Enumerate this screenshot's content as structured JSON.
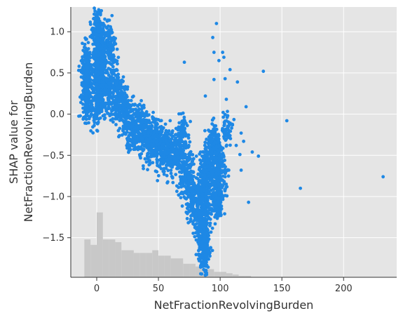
{
  "chart_data": {
    "type": "scatter",
    "xlabel": "NetFractionRevolvingBurden",
    "ylabel_lines": [
      "SHAP value for",
      "NetFractionRevolvingBurden"
    ],
    "xlim": [
      -21,
      243
    ],
    "ylim": [
      -1.98,
      1.3
    ],
    "xticks": [
      0,
      50,
      100,
      150,
      200
    ],
    "yticks": [
      1.0,
      0.5,
      0.0,
      -0.5,
      -1.0,
      -1.5
    ],
    "ytick_labels": [
      "1.0",
      "0.5",
      "0.0",
      "−0.5",
      "−1.0",
      "−1.5"
    ],
    "grid": true,
    "background": "#e5e5e5",
    "point_color": "#1e88e5",
    "hist_color": "#c8c8c8",
    "cloud": [
      [
        -8,
        0.42
      ],
      [
        -8,
        0.1
      ],
      [
        -8,
        0.3
      ],
      [
        -8,
        0.55
      ],
      [
        -8,
        0.65
      ],
      [
        0,
        0.35
      ],
      [
        0,
        0.0
      ],
      [
        1,
        0.7
      ],
      [
        1,
        1.1
      ],
      [
        1,
        1.0
      ],
      [
        2,
        0.5
      ],
      [
        3,
        0.8
      ],
      [
        4,
        0.3
      ],
      [
        5,
        0.75
      ],
      [
        5,
        0.2
      ],
      [
        8,
        0.5
      ],
      [
        10,
        0.9
      ],
      [
        10,
        0.2
      ],
      [
        12,
        0.8
      ],
      [
        13,
        0.45
      ],
      [
        15,
        0.1
      ],
      [
        18,
        0.3
      ],
      [
        20,
        0.2
      ],
      [
        22,
        -0.05
      ],
      [
        25,
        0.05
      ],
      [
        28,
        -0.2
      ],
      [
        30,
        -0.05
      ],
      [
        32,
        -0.3
      ],
      [
        35,
        -0.15
      ],
      [
        38,
        -0.1
      ],
      [
        40,
        -0.25
      ],
      [
        42,
        -0.4
      ],
      [
        45,
        -0.3
      ],
      [
        48,
        -0.2
      ],
      [
        50,
        -0.35
      ],
      [
        52,
        -0.5
      ],
      [
        55,
        -0.4
      ],
      [
        58,
        -0.35
      ],
      [
        60,
        -0.55
      ],
      [
        62,
        -0.45
      ],
      [
        65,
        -0.5
      ],
      [
        68,
        -0.4
      ],
      [
        70,
        -0.2
      ],
      [
        70,
        -0.8
      ],
      [
        72,
        -0.6
      ],
      [
        75,
        -0.7
      ],
      [
        76,
        -1.0
      ],
      [
        78,
        -0.9
      ],
      [
        80,
        -1.2
      ],
      [
        82,
        -1.1
      ],
      [
        84,
        -1.4
      ],
      [
        85,
        -0.9
      ],
      [
        86,
        -1.6
      ],
      [
        87,
        -1.8
      ],
      [
        88,
        -1.5
      ],
      [
        90,
        -1.2
      ],
      [
        90,
        -0.7
      ],
      [
        92,
        -0.4
      ],
      [
        94,
        -0.9
      ],
      [
        95,
        -0.6
      ],
      [
        96,
        -0.3
      ],
      [
        98,
        -1.0
      ],
      [
        100,
        -0.5
      ],
      [
        102,
        -0.8
      ],
      [
        105,
        -0.2
      ]
    ],
    "outliers": [
      [
        97,
        1.1
      ],
      [
        94,
        0.93
      ],
      [
        95,
        0.75
      ],
      [
        102,
        0.75
      ],
      [
        103,
        0.69
      ],
      [
        108,
        0.54
      ],
      [
        135,
        0.52
      ],
      [
        71,
        0.63
      ],
      [
        95,
        0.42
      ],
      [
        99,
        0.65
      ],
      [
        121,
        0.09
      ],
      [
        154,
        -0.08
      ],
      [
        165,
        -0.9
      ],
      [
        232,
        -0.76
      ],
      [
        123,
        -1.07
      ],
      [
        116,
        -0.49
      ],
      [
        126,
        -0.46
      ],
      [
        131,
        -0.51
      ],
      [
        117,
        -0.23
      ],
      [
        119,
        -0.33
      ],
      [
        113,
        -0.38
      ],
      [
        117,
        -0.68
      ],
      [
        107,
        -0.68
      ],
      [
        88,
        0.22
      ],
      [
        104,
        0.43
      ],
      [
        114,
        0.39
      ],
      [
        105,
        0.18
      ]
    ],
    "histogram": {
      "edges": [
        -10,
        -5,
        0,
        5,
        10,
        15,
        20,
        25,
        30,
        35,
        40,
        45,
        50,
        55,
        60,
        65,
        70,
        75,
        80,
        85,
        90,
        95,
        100,
        105,
        110,
        115,
        120,
        125
      ],
      "heights": [
        0.14,
        0.12,
        0.24,
        0.14,
        0.14,
        0.13,
        0.1,
        0.1,
        0.09,
        0.09,
        0.09,
        0.1,
        0.08,
        0.08,
        0.07,
        0.07,
        0.05,
        0.05,
        0.04,
        0.03,
        0.03,
        0.02,
        0.02,
        0.015,
        0.01,
        0.005,
        0.005
      ]
    }
  }
}
